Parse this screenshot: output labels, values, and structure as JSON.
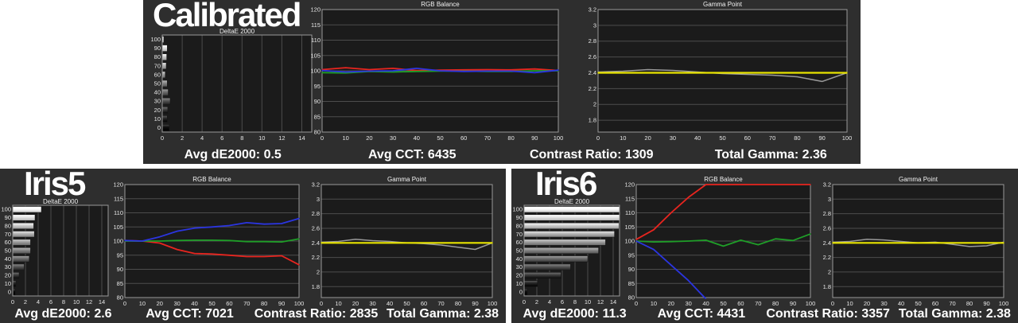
{
  "page": {
    "background": "#ffffff"
  },
  "colors": {
    "panel_bg": "#2e2e2e",
    "plot_bg": "#1b1b1b",
    "grid": "#4c4c4c",
    "plot_border": "#999999",
    "tick_text": "#e6e6e6",
    "chart_title_text": "#f2f2f2",
    "red": "#e8251f",
    "green": "#1f9e28",
    "blue": "#2b35e0",
    "yellow": "#e8e400",
    "gray": "#9a9a9a"
  },
  "chart_data": [
    {
      "panel": "Calibrated",
      "charts": [
        {
          "type": "bar",
          "title": "DeltaE 2000",
          "orientation": "horizontal",
          "categories": [
            100,
            90,
            80,
            70,
            60,
            50,
            40,
            30,
            20,
            10,
            0
          ],
          "values": [
            0.15,
            0.5,
            0.45,
            0.4,
            0.3,
            0.5,
            0.6,
            0.8,
            0.55,
            0.5,
            0.7
          ],
          "xlim": [
            0,
            15
          ],
          "x_ticks": [
            0,
            2,
            4,
            6,
            8,
            10,
            12,
            14
          ],
          "bar_style": "grayscale-gradient-by-level"
        },
        {
          "type": "line",
          "title": "RGB Balance",
          "x": [
            0,
            10,
            20,
            30,
            40,
            50,
            60,
            70,
            80,
            90,
            100
          ],
          "x_ticks": [
            0,
            10,
            20,
            30,
            40,
            50,
            60,
            70,
            80,
            90,
            100
          ],
          "ylim": [
            80,
            120
          ],
          "y_ticks": [
            80,
            85,
            90,
            95,
            100,
            105,
            110,
            115,
            120
          ],
          "series": [
            {
              "name": "red",
              "color": "#e8251f",
              "values": [
                100.4,
                101.0,
                100.4,
                100.8,
                100.1,
                100.2,
                100.3,
                100.4,
                100.3,
                100.6,
                100.1
              ]
            },
            {
              "name": "green",
              "color": "#1f9e28",
              "values": [
                99.4,
                99.3,
                99.8,
                99.6,
                99.8,
                99.9,
                99.9,
                99.8,
                99.8,
                100.0,
                100.0
              ]
            },
            {
              "name": "blue",
              "color": "#2b35e0",
              "values": [
                100.1,
                99.6,
                99.9,
                100.0,
                100.8,
                100.0,
                99.8,
                99.9,
                99.9,
                99.4,
                100.2
              ]
            }
          ]
        },
        {
          "type": "line",
          "title": "Gamma Point",
          "x": [
            0,
            10,
            20,
            30,
            40,
            50,
            60,
            70,
            80,
            90,
            100
          ],
          "x_ticks": [
            0,
            10,
            20,
            30,
            40,
            50,
            60,
            70,
            80,
            90,
            100
          ],
          "ylim": [
            1.65,
            3.2
          ],
          "y_ticks": [
            1.8,
            2,
            2.2,
            2.4,
            2.6,
            2.8,
            3,
            3.2
          ],
          "series": [
            {
              "name": "measured",
              "color": "#9a9a9a",
              "values": [
                2.41,
                2.42,
                2.44,
                2.43,
                2.41,
                2.39,
                2.38,
                2.37,
                2.35,
                2.29,
                2.4
              ]
            },
            {
              "name": "reference",
              "color": "#e8e400",
              "values": [
                2.4,
                2.4,
                2.4,
                2.4,
                2.4,
                2.4,
                2.4,
                2.4,
                2.4,
                2.4,
                2.4
              ]
            }
          ]
        }
      ],
      "stats": {
        "avg_de2000": "Avg dE2000: 0.5",
        "avg_cct": "Avg CCT: 6435",
        "contrast_ratio": "Contrast Ratio: 1309",
        "total_gamma": "Total Gamma: 2.36"
      }
    },
    {
      "panel": "Iris5",
      "charts": [
        {
          "type": "bar",
          "title": "DeltaE 2000",
          "orientation": "horizontal",
          "categories": [
            100,
            90,
            80,
            70,
            60,
            50,
            40,
            30,
            20,
            10,
            0
          ],
          "values": [
            4.5,
            3.5,
            3.3,
            3.4,
            2.8,
            2.8,
            2.6,
            1.8,
            1.0,
            0.5,
            0.4
          ],
          "xlim": [
            0,
            15
          ],
          "x_ticks": [
            0,
            2,
            4,
            6,
            8,
            10,
            12,
            14
          ],
          "bar_style": "grayscale-gradient-by-level"
        },
        {
          "type": "line",
          "title": "RGB Balance",
          "x": [
            0,
            10,
            20,
            30,
            40,
            50,
            60,
            70,
            80,
            90,
            100
          ],
          "x_ticks": [
            0,
            10,
            20,
            30,
            40,
            50,
            60,
            70,
            80,
            90,
            100
          ],
          "ylim": [
            80,
            120
          ],
          "y_ticks": [
            80,
            85,
            90,
            95,
            100,
            105,
            110,
            115,
            120
          ],
          "series": [
            {
              "name": "red",
              "color": "#e8251f",
              "values": [
                100.2,
                100.0,
                99.3,
                97.0,
                95.6,
                95.4,
                95.0,
                94.5,
                94.5,
                94.8,
                91.6
              ]
            },
            {
              "name": "green",
              "color": "#1f9e28",
              "values": [
                100.0,
                100.0,
                100.0,
                100.2,
                100.3,
                100.3,
                100.2,
                99.8,
                99.8,
                99.7,
                100.8
              ]
            },
            {
              "name": "blue",
              "color": "#2b35e0",
              "values": [
                100.2,
                100.0,
                101.5,
                103.5,
                104.6,
                105.0,
                105.5,
                106.5,
                106.0,
                106.2,
                108.0
              ]
            }
          ]
        },
        {
          "type": "line",
          "title": "Gamma Point",
          "x": [
            0,
            10,
            20,
            30,
            40,
            50,
            60,
            70,
            80,
            90,
            100
          ],
          "x_ticks": [
            0,
            10,
            20,
            30,
            40,
            50,
            60,
            70,
            80,
            90,
            100
          ],
          "ylim": [
            1.65,
            3.2
          ],
          "y_ticks": [
            1.8,
            2,
            2.2,
            2.4,
            2.6,
            2.8,
            3,
            3.2
          ],
          "series": [
            {
              "name": "measured",
              "color": "#9a9a9a",
              "values": [
                2.41,
                2.42,
                2.45,
                2.43,
                2.42,
                2.4,
                2.39,
                2.37,
                2.34,
                2.31,
                2.4
              ]
            },
            {
              "name": "reference",
              "color": "#e8e400",
              "values": [
                2.4,
                2.4,
                2.4,
                2.4,
                2.4,
                2.4,
                2.4,
                2.4,
                2.4,
                2.4,
                2.4
              ]
            }
          ]
        }
      ],
      "stats": {
        "avg_de2000": "Avg dE2000: 2.6",
        "avg_cct": "Avg CCT: 7021",
        "contrast_ratio": "Contrast Ratio: 2835",
        "total_gamma": "Total Gamma: 2.38"
      }
    },
    {
      "panel": "Iris6",
      "charts": [
        {
          "type": "bar",
          "title": "DeltaE 2000",
          "orientation": "horizontal",
          "categories": [
            100,
            90,
            80,
            70,
            60,
            50,
            40,
            30,
            20,
            10,
            0
          ],
          "values": [
            15.2,
            15.1,
            14.9,
            14.2,
            12.8,
            11.7,
            10.0,
            7.3,
            5.8,
            2.1,
            0.5
          ],
          "xlim": [
            0,
            15
          ],
          "x_ticks": [
            0,
            2,
            4,
            6,
            8,
            10,
            12,
            14
          ],
          "bar_style": "grayscale-gradient-by-level"
        },
        {
          "type": "line",
          "title": "RGB Balance",
          "x": [
            0,
            10,
            20,
            30,
            40,
            50,
            60,
            70,
            80,
            90,
            100
          ],
          "x_ticks": [
            0,
            10,
            20,
            30,
            40,
            50,
            60,
            70,
            80,
            90,
            100
          ],
          "ylim": [
            80,
            120
          ],
          "y_ticks": [
            80,
            85,
            90,
            95,
            100,
            105,
            110,
            115,
            120
          ],
          "series": [
            {
              "name": "red",
              "color": "#e8251f",
              "values": [
                100.6,
                104.0,
                110.0,
                115.5,
                120.0,
                120.0,
                120.0,
                120.0,
                120.0,
                120.0,
                120.0
              ]
            },
            {
              "name": "green",
              "color": "#1f9e28",
              "values": [
                100.0,
                99.7,
                99.8,
                100.0,
                100.3,
                98.2,
                100.3,
                98.7,
                100.8,
                100.2,
                102.5
              ]
            },
            {
              "name": "blue",
              "color": "#2b35e0",
              "values": [
                100.0,
                97.0,
                91.5,
                86.0,
                79.5,
                null,
                null,
                null,
                null,
                null,
                null
              ]
            }
          ]
        },
        {
          "type": "line",
          "title": "Gamma Point",
          "x": [
            0,
            10,
            20,
            30,
            40,
            50,
            60,
            70,
            80,
            90,
            100
          ],
          "x_ticks": [
            0,
            10,
            20,
            30,
            40,
            50,
            60,
            70,
            80,
            90,
            100
          ],
          "ylim": [
            1.65,
            3.2
          ],
          "y_ticks": [
            1.8,
            2,
            2.2,
            2.4,
            2.6,
            2.8,
            3,
            3.2
          ],
          "series": [
            {
              "name": "measured",
              "color": "#9a9a9a",
              "values": [
                2.41,
                2.42,
                2.45,
                2.44,
                2.42,
                2.4,
                2.41,
                2.38,
                2.35,
                2.36,
                2.41
              ]
            },
            {
              "name": "reference",
              "color": "#e8e400",
              "values": [
                2.4,
                2.4,
                2.4,
                2.4,
                2.4,
                2.4,
                2.4,
                2.4,
                2.4,
                2.4,
                2.4
              ]
            }
          ]
        }
      ],
      "stats": {
        "avg_de2000": "Avg dE2000: 11.3",
        "avg_cct": "Avg CCT: 4431",
        "contrast_ratio": "Contrast Ratio: 3357",
        "total_gamma": "Total Gamma: 2.38"
      }
    }
  ]
}
